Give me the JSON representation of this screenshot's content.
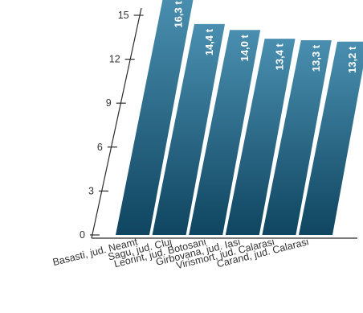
{
  "chart_data": {
    "type": "bar",
    "categories": [
      "Basasti, jud. Neamt",
      "Sagu, jud. Cluj",
      "Leorint, jud. Botosani",
      "Girbovana, jud. Iasi",
      "Virismort, jud. Calarasi",
      "Carand, jud. Calarasi"
    ],
    "values": [
      16.3,
      14.4,
      14.0,
      13.4,
      13.3,
      13.2
    ],
    "data_labels": [
      "16,3 t",
      "14,4 t",
      "14,0 t",
      "13,4 t",
      "13,3 t",
      "13,2 t"
    ],
    "y_ticks": [
      "0",
      "3",
      "6",
      "9",
      "12",
      "15"
    ],
    "ylim": [
      0,
      15
    ],
    "grid": false,
    "legend": "none",
    "style": "perspective, slanted bars",
    "colors": {
      "bar_top": "#4a8fb0",
      "bar_bottom": "#0f4560",
      "axis": "#2b2b2b",
      "text": "#333333",
      "label": "#ffffff"
    }
  }
}
